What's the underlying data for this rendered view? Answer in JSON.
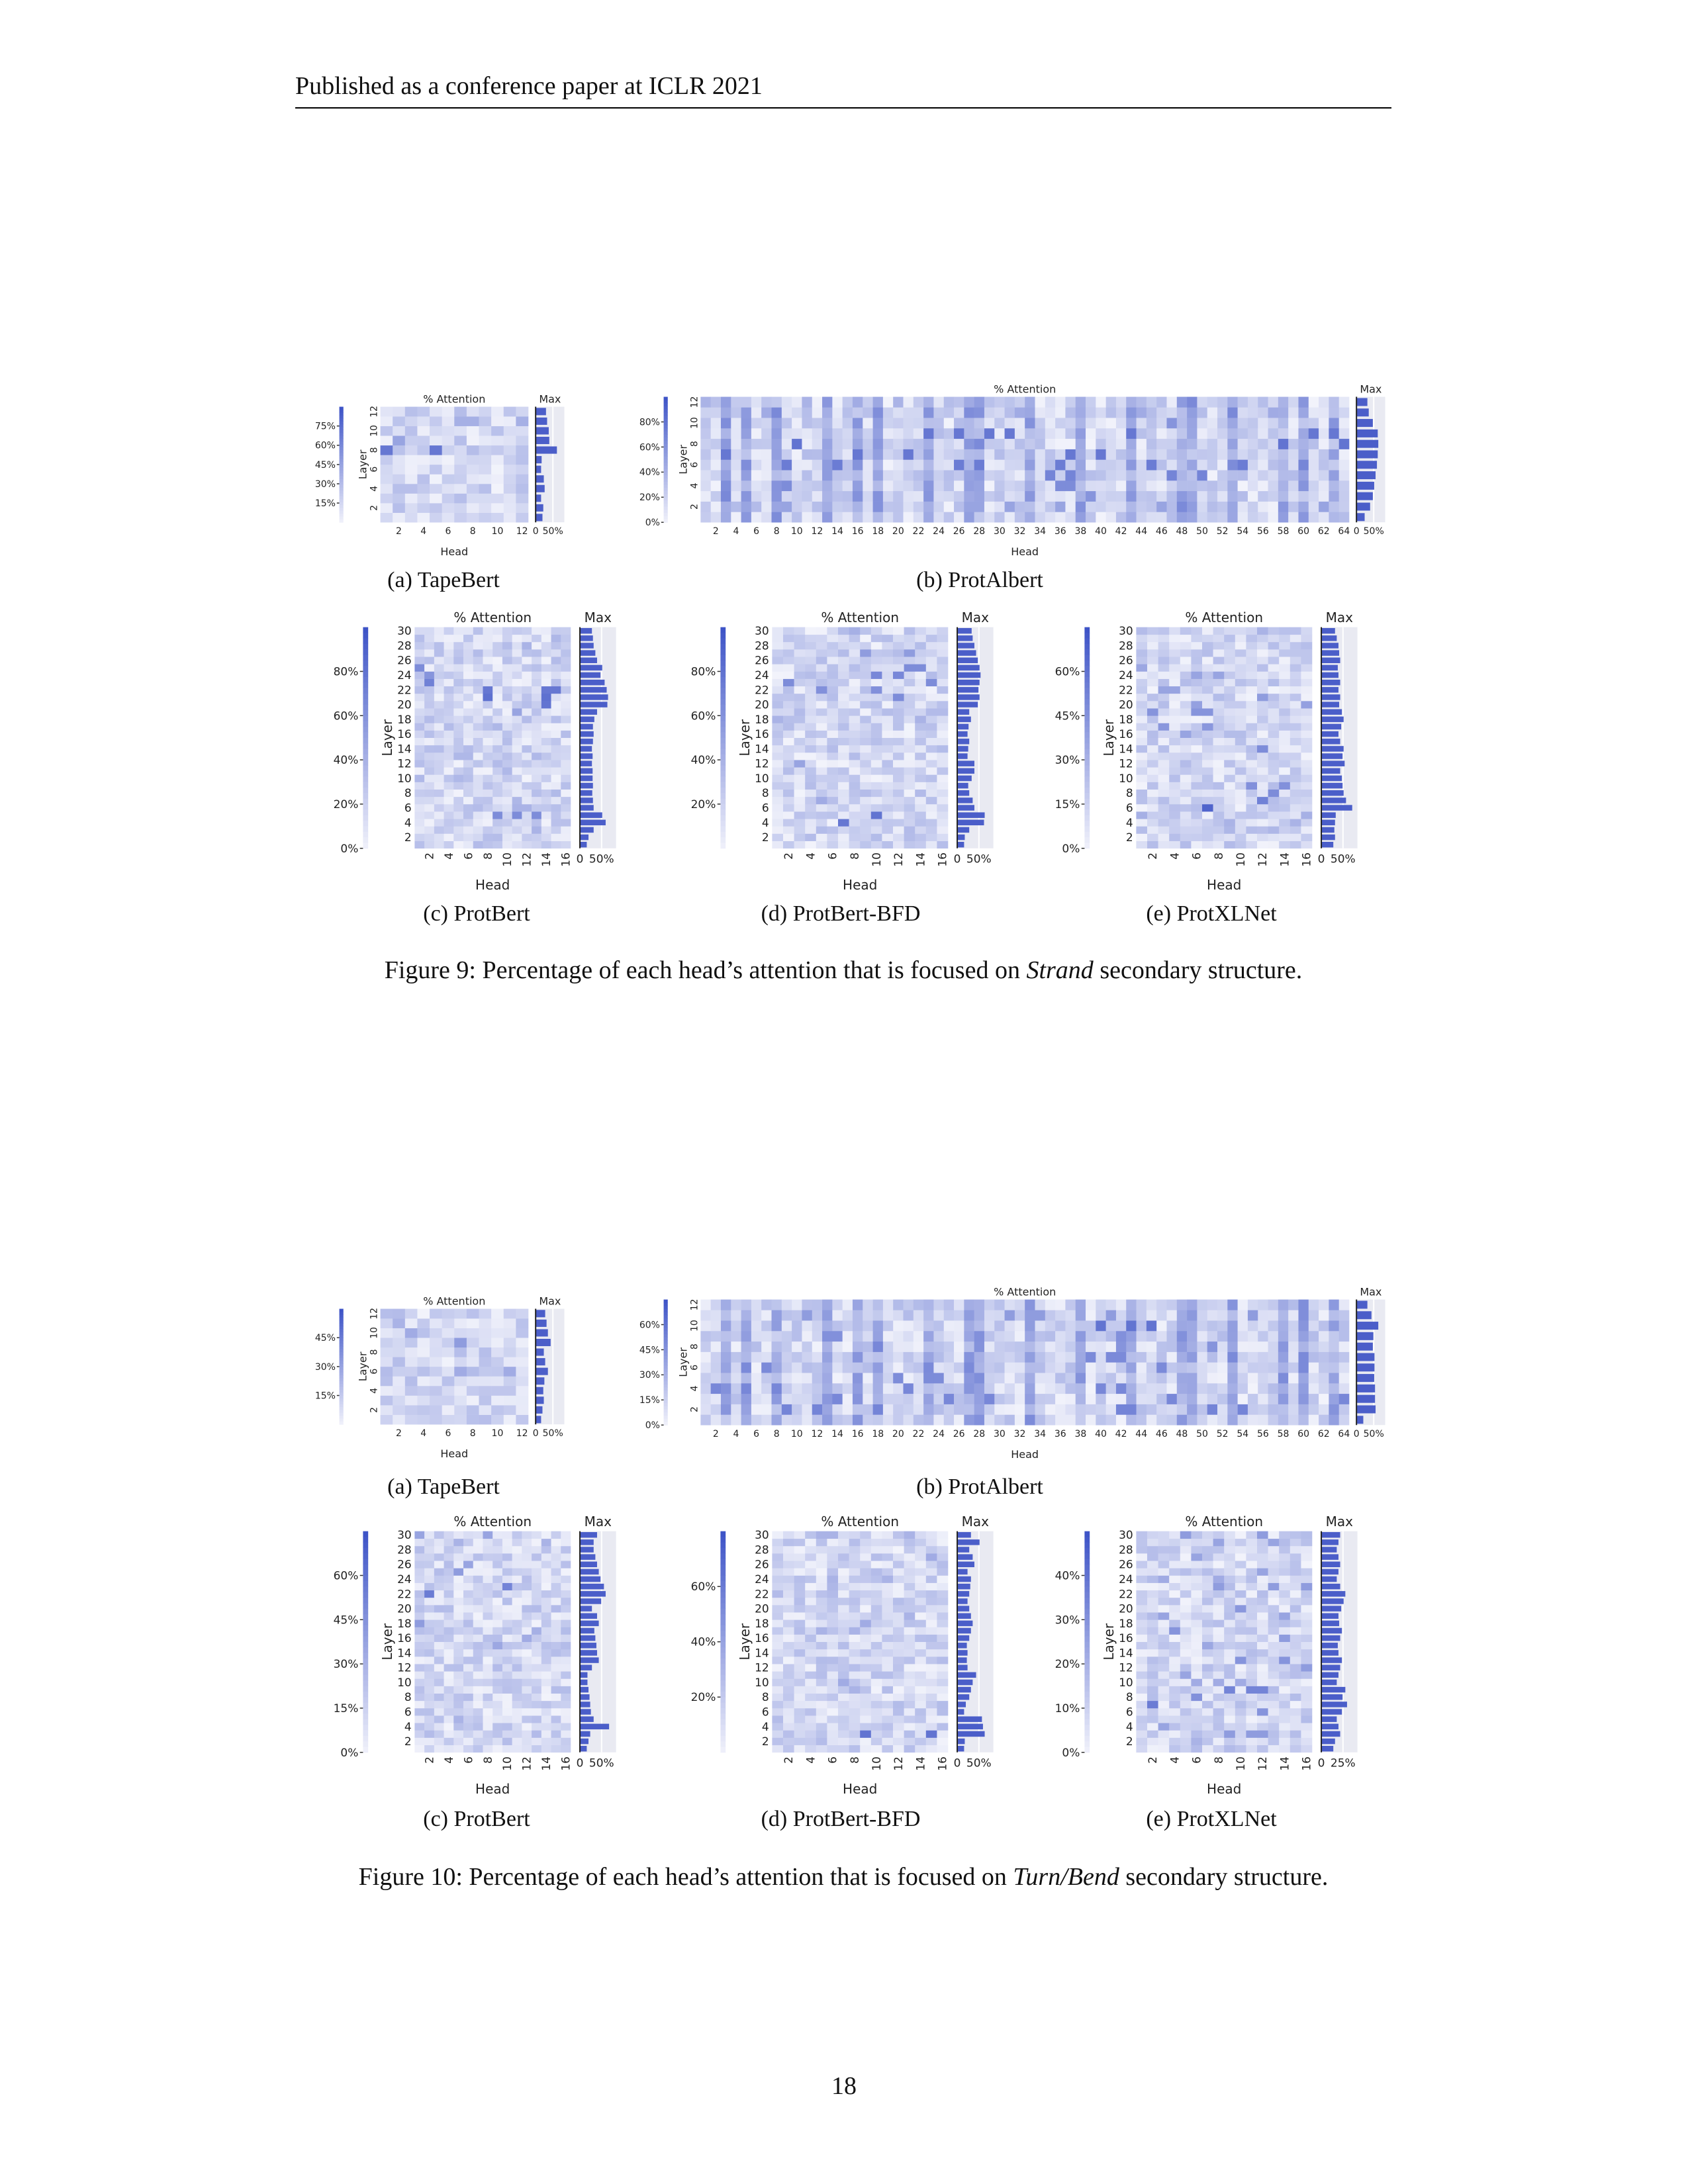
{
  "header": {
    "running_head": "Published as a conference paper at ICLR 2021"
  },
  "colors": {
    "heat_low": "#f2f3fb",
    "heat_high": "#3e54c7",
    "bar": "#4b5ec9",
    "bar_bg": "#e9eaf2",
    "grid_gap": "#ffffff"
  },
  "labels": {
    "pct_attention": "% Attention",
    "max": "Max",
    "layer": "Layer",
    "head": "Head"
  },
  "figures": [
    {
      "number": "Figure 9:",
      "caption_pre": "Percentage of each head’s attention that is focused on ",
      "caption_em": "Strand",
      "caption_post": " secondary structure.",
      "subcaptions": [
        "(a) TapeBert",
        "(b) ProtAlbert",
        "(c) ProtBert",
        "(d) ProtBert-BFD",
        "(e) ProtXLNet"
      ]
    },
    {
      "number": "Figure 10:",
      "caption_pre": "Percentage of each head’s attention that is focused on ",
      "caption_em": "Turn/Bend",
      "caption_post": " secondary structure.",
      "subcaptions": [
        "(a) TapeBert",
        "(b) ProtAlbert",
        "(c) ProtBert",
        "(d) ProtBert-BFD",
        "(e) ProtXLNet"
      ]
    }
  ],
  "chart_data": [
    {
      "figure": "Figure 9",
      "model": "TapeBert",
      "type": "heatmap",
      "title": "% Attention",
      "xlabel": "Head",
      "ylabel": "Layer",
      "layers": 12,
      "heads": 12,
      "colorbar_ticks": [
        "15%",
        "30%",
        "45%",
        "60%",
        "75%"
      ],
      "vmax": 0.8,
      "x_ticks": [
        "2",
        "4",
        "6",
        "8",
        "10",
        "12"
      ],
      "y_ticks": [
        "2",
        "4",
        "6",
        "8",
        "10",
        "12"
      ],
      "max_title": "Max",
      "max_ticks": [
        "0",
        "50%"
      ],
      "layer_max": [
        0.25,
        0.28,
        0.2,
        0.33,
        0.3,
        0.2,
        0.22,
        0.78,
        0.5,
        0.48,
        0.42,
        0.38
      ]
    },
    {
      "figure": "Figure 9",
      "model": "ProtAlbert",
      "type": "heatmap",
      "title": "% Attention",
      "xlabel": "Head",
      "ylabel": "Layer",
      "layers": 12,
      "heads": 64,
      "colorbar_ticks": [
        "0%",
        "20%",
        "40%",
        "60%",
        "80%"
      ],
      "vmax": 0.85,
      "x_ticks": [
        "2",
        "4",
        "6",
        "8",
        "10",
        "12",
        "14",
        "16",
        "18",
        "20",
        "22",
        "24",
        "26",
        "28",
        "30",
        "32",
        "34",
        "36",
        "38",
        "40",
        "42",
        "44",
        "46",
        "48",
        "50",
        "52",
        "54",
        "56",
        "58",
        "60",
        "62",
        "64"
      ],
      "y_ticks": [
        "2",
        "4",
        "6",
        "8",
        "10",
        "12"
      ],
      "max_title": "Max",
      "max_ticks": [
        "0",
        "50%"
      ],
      "layer_max": [
        0.3,
        0.5,
        0.6,
        0.65,
        0.7,
        0.75,
        0.78,
        0.8,
        0.78,
        0.6,
        0.45,
        0.4
      ]
    },
    {
      "figure": "Figure 9",
      "model": "ProtBert",
      "type": "heatmap",
      "title": "% Attention",
      "xlabel": "Head",
      "ylabel": "Layer",
      "layers": 30,
      "heads": 16,
      "colorbar_ticks": [
        "0%",
        "20%",
        "40%",
        "60%",
        "80%"
      ],
      "vmax": 0.85,
      "x_ticks": [
        "2",
        "4",
        "6",
        "8",
        "10",
        "12",
        "14",
        "16"
      ],
      "y_ticks": [
        "2",
        "4",
        "6",
        "8",
        "10",
        "12",
        "14",
        "16",
        "18",
        "20",
        "22",
        "24",
        "26",
        "28",
        "30"
      ],
      "max_title": "Max",
      "max_ticks": [
        "0",
        "50%"
      ],
      "layer_max": [
        0.2,
        0.25,
        0.4,
        0.75,
        0.65,
        0.4,
        0.38,
        0.36,
        0.38,
        0.37,
        0.37,
        0.35,
        0.37,
        0.35,
        0.38,
        0.4,
        0.38,
        0.42,
        0.5,
        0.8,
        0.82,
        0.78,
        0.72,
        0.6,
        0.65,
        0.5,
        0.45,
        0.4,
        0.38,
        0.35
      ]
    },
    {
      "figure": "Figure 9",
      "model": "ProtBert-BFD",
      "type": "heatmap",
      "title": "% Attention",
      "xlabel": "Head",
      "ylabel": "Layer",
      "layers": 30,
      "heads": 16,
      "colorbar_ticks": [
        "20%",
        "40%",
        "60%",
        "80%"
      ],
      "vmax": 0.85,
      "x_ticks": [
        "2",
        "4",
        "6",
        "8",
        "10",
        "12",
        "14",
        "16"
      ],
      "y_ticks": [
        "2",
        "4",
        "6",
        "8",
        "10",
        "12",
        "14",
        "16",
        "18",
        "20",
        "22",
        "24",
        "26",
        "28",
        "30"
      ],
      "max_title": "Max",
      "max_ticks": [
        "0",
        "50%"
      ],
      "layer_max": [
        0.2,
        0.22,
        0.35,
        0.78,
        0.8,
        0.5,
        0.45,
        0.35,
        0.32,
        0.42,
        0.5,
        0.5,
        0.3,
        0.32,
        0.35,
        0.3,
        0.33,
        0.4,
        0.35,
        0.6,
        0.65,
        0.62,
        0.65,
        0.68,
        0.65,
        0.6,
        0.55,
        0.5,
        0.45,
        0.42
      ]
    },
    {
      "figure": "Figure 9",
      "model": "ProtXLNet",
      "type": "heatmap",
      "title": "% Attention",
      "xlabel": "Head",
      "ylabel": "Layer",
      "layers": 30,
      "heads": 16,
      "colorbar_ticks": [
        "0%",
        "15%",
        "30%",
        "45%",
        "60%"
      ],
      "vmax": 0.7,
      "x_ticks": [
        "2",
        "4",
        "6",
        "8",
        "10",
        "12",
        "14",
        "16"
      ],
      "y_ticks": [
        "2",
        "4",
        "6",
        "8",
        "10",
        "12",
        "14",
        "16",
        "18",
        "20",
        "22",
        "24",
        "26",
        "28",
        "30"
      ],
      "max_title": "Max",
      "max_ticks": [
        "0",
        "50%"
      ],
      "layer_max": [
        0.35,
        0.4,
        0.38,
        0.4,
        0.42,
        0.9,
        0.72,
        0.65,
        0.62,
        0.6,
        0.55,
        0.68,
        0.62,
        0.65,
        0.55,
        0.5,
        0.58,
        0.65,
        0.6,
        0.52,
        0.55,
        0.5,
        0.55,
        0.5,
        0.48,
        0.55,
        0.52,
        0.5,
        0.45,
        0.4
      ]
    },
    {
      "figure": "Figure 10",
      "model": "TapeBert",
      "type": "heatmap",
      "title": "% Attention",
      "xlabel": "Head",
      "ylabel": "Layer",
      "layers": 12,
      "heads": 12,
      "colorbar_ticks": [
        "15%",
        "30%",
        "45%"
      ],
      "vmax": 0.55,
      "x_ticks": [
        "2",
        "4",
        "6",
        "8",
        "10",
        "12"
      ],
      "y_ticks": [
        "2",
        "4",
        "6",
        "8",
        "10",
        "12"
      ],
      "max_title": "Max",
      "max_ticks": [
        "0",
        "50%"
      ],
      "layer_max": [
        0.2,
        0.25,
        0.3,
        0.28,
        0.32,
        0.45,
        0.35,
        0.3,
        0.55,
        0.45,
        0.4,
        0.35
      ]
    },
    {
      "figure": "Figure 10",
      "model": "ProtAlbert",
      "type": "heatmap",
      "title": "% Attention",
      "xlabel": "Head",
      "ylabel": "Layer",
      "layers": 12,
      "heads": 64,
      "colorbar_ticks": [
        "0%",
        "15%",
        "30%",
        "45%",
        "60%"
      ],
      "vmax": 0.65,
      "x_ticks": [
        "2",
        "4",
        "6",
        "8",
        "10",
        "12",
        "14",
        "16",
        "18",
        "20",
        "22",
        "24",
        "26",
        "28",
        "30",
        "32",
        "34",
        "36",
        "38",
        "40",
        "42",
        "44",
        "46",
        "48",
        "50",
        "52",
        "54",
        "56",
        "58",
        "60",
        "62",
        "64"
      ],
      "y_ticks": [
        "2",
        "4",
        "6",
        "8",
        "10",
        "12"
      ],
      "max_title": "Max",
      "max_ticks": [
        "0",
        "50%"
      ],
      "layer_max": [
        0.25,
        0.7,
        0.68,
        0.68,
        0.65,
        0.66,
        0.66,
        0.6,
        0.62,
        0.8,
        0.55,
        0.4
      ]
    },
    {
      "figure": "Figure 10",
      "model": "ProtBert",
      "type": "heatmap",
      "title": "% Attention",
      "xlabel": "Head",
      "ylabel": "Layer",
      "layers": 30,
      "heads": 16,
      "colorbar_ticks": [
        "0%",
        "15%",
        "30%",
        "45%",
        "60%"
      ],
      "vmax": 0.65,
      "x_ticks": [
        "2",
        "4",
        "6",
        "8",
        "10",
        "12",
        "14",
        "16"
      ],
      "y_ticks": [
        "2",
        "4",
        "6",
        "8",
        "10",
        "12",
        "14",
        "16",
        "18",
        "20",
        "22",
        "24",
        "26",
        "28",
        "30"
      ],
      "max_title": "Max",
      "max_ticks": [
        "0",
        "50%"
      ],
      "layer_max": [
        0.2,
        0.25,
        0.3,
        0.85,
        0.4,
        0.32,
        0.3,
        0.28,
        0.25,
        0.22,
        0.22,
        0.35,
        0.55,
        0.5,
        0.48,
        0.45,
        0.42,
        0.55,
        0.5,
        0.35,
        0.62,
        0.75,
        0.7,
        0.6,
        0.55,
        0.5,
        0.45,
        0.4,
        0.4,
        0.5
      ]
    },
    {
      "figure": "Figure 10",
      "model": "ProtBert-BFD",
      "type": "heatmap",
      "title": "% Attention",
      "xlabel": "Head",
      "ylabel": "Layer",
      "layers": 30,
      "heads": 16,
      "colorbar_ticks": [
        "20%",
        "40%",
        "60%"
      ],
      "vmax": 0.8,
      "x_ticks": [
        "2",
        "4",
        "6",
        "8",
        "10",
        "12",
        "14",
        "16"
      ],
      "y_ticks": [
        "2",
        "4",
        "6",
        "8",
        "10",
        "12",
        "14",
        "16",
        "18",
        "20",
        "22",
        "24",
        "26",
        "28",
        "30"
      ],
      "max_title": "Max",
      "max_ticks": [
        "0",
        "50%"
      ],
      "layer_max": [
        0.2,
        0.22,
        0.8,
        0.75,
        0.72,
        0.2,
        0.25,
        0.35,
        0.4,
        0.45,
        0.55,
        0.3,
        0.28,
        0.3,
        0.28,
        0.35,
        0.4,
        0.45,
        0.4,
        0.35,
        0.3,
        0.35,
        0.38,
        0.4,
        0.3,
        0.5,
        0.45,
        0.35,
        0.65,
        0.4
      ]
    },
    {
      "figure": "Figure 10",
      "model": "ProtXLNet",
      "type": "heatmap",
      "title": "% Attention",
      "xlabel": "Head",
      "ylabel": "Layer",
      "layers": 30,
      "heads": 16,
      "colorbar_ticks": [
        "0%",
        "10%",
        "20%",
        "30%",
        "40%"
      ],
      "vmax": 0.45,
      "x_ticks": [
        "2",
        "4",
        "6",
        "8",
        "10",
        "12",
        "14",
        "16"
      ],
      "y_ticks": [
        "2",
        "4",
        "6",
        "8",
        "10",
        "12",
        "14",
        "16",
        "18",
        "20",
        "22",
        "24",
        "26",
        "28",
        "30"
      ],
      "max_title": "Max",
      "max_ticks": [
        "0",
        "25%"
      ],
      "layer_max": [
        0.35,
        0.4,
        0.55,
        0.5,
        0.45,
        0.6,
        0.75,
        0.62,
        0.7,
        0.45,
        0.5,
        0.55,
        0.6,
        0.5,
        0.48,
        0.55,
        0.6,
        0.52,
        0.5,
        0.58,
        0.65,
        0.7,
        0.55,
        0.45,
        0.5,
        0.55,
        0.5,
        0.45,
        0.5,
        0.55
      ]
    }
  ]
}
